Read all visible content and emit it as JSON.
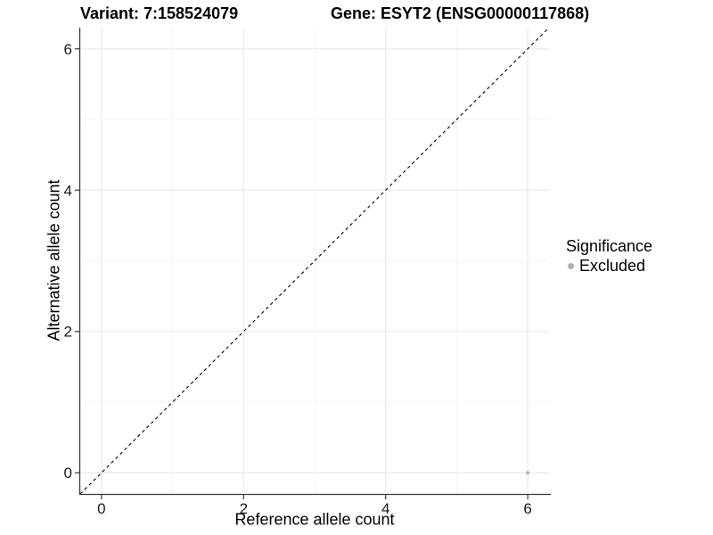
{
  "header": {
    "left_title": "Variant: 7:158524079",
    "right_title": "Gene: ESYT2 (ENSG00000117868)"
  },
  "chart_data": {
    "type": "scatter",
    "xlabel": "Reference allele count",
    "ylabel": "Alternative allele count",
    "xlim": [
      0,
      6
    ],
    "ylim": [
      0,
      6
    ],
    "x_ticks": [
      0,
      2,
      4,
      6
    ],
    "y_ticks": [
      0,
      2,
      4,
      6
    ],
    "x_minor_ticks": [
      1,
      3,
      5
    ],
    "y_minor_ticks": [
      1,
      3,
      5
    ],
    "grid": true,
    "points": [
      {
        "x": 6,
        "y": 0,
        "series": "Excluded"
      }
    ],
    "reference_line": {
      "type": "identity",
      "description": "y = x diagonal",
      "style": "dashed",
      "color": "#000000"
    },
    "legend": {
      "title": "Significance",
      "position": "right",
      "items": [
        {
          "label": "Excluded",
          "color": "#b0b0b0"
        }
      ]
    },
    "colors": {
      "point_excluded": "#b0b0b0",
      "grid_major": "#e8e8e8",
      "grid_minor": "#f4f4f4",
      "axis_line": "#3a3a3a",
      "tick_label": "#1a1a1a"
    }
  }
}
